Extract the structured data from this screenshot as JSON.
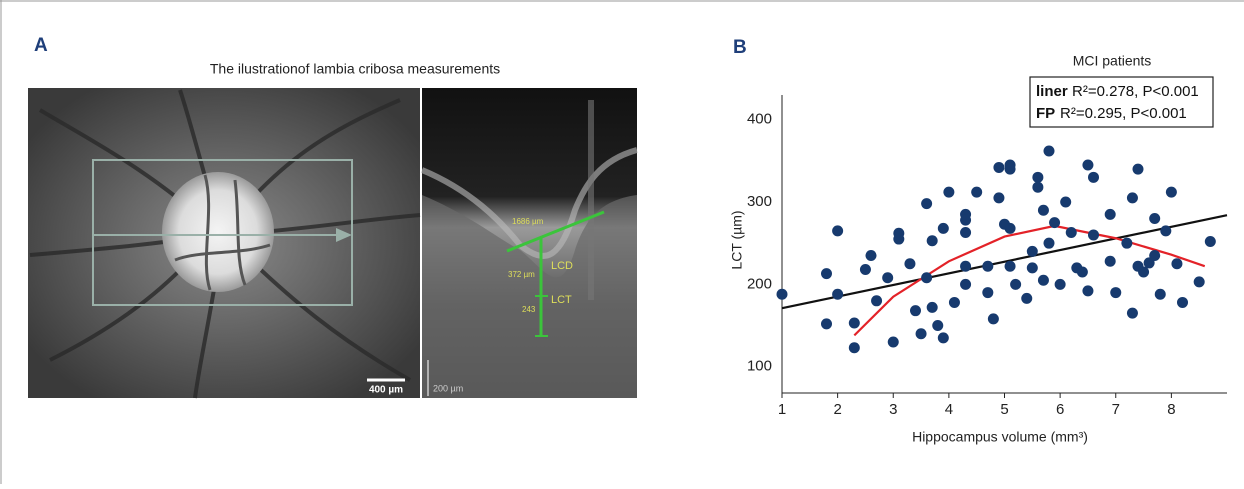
{
  "panel_a": {
    "label": "A",
    "title": "The ilustrationof lambia cribosa measurements",
    "fundus_scale": "400 µm",
    "oct_scale": "200 µm",
    "oct_labels": [
      "1686 µm",
      "372 µm",
      "243"
    ],
    "lcd": "LCD",
    "lct": "LCT"
  },
  "chart_data": {
    "type": "scatter",
    "label": "B",
    "title": "MCI patients",
    "x_label": "Hippocampus volume (mm³)",
    "y_label": "LCT (µm)",
    "xlim": [
      1,
      9
    ],
    "ylim": [
      68,
      430
    ],
    "xticks": [
      1,
      2,
      3,
      4,
      5,
      6,
      7,
      8
    ],
    "yticks": [
      100,
      200,
      300,
      400
    ],
    "color": "#173a6e",
    "x": [
      1.0,
      1.8,
      1.8,
      2.0,
      2.0,
      2.3,
      2.3,
      2.5,
      2.6,
      2.7,
      2.9,
      3.1,
      3.1,
      3.0,
      3.3,
      3.4,
      3.5,
      3.6,
      3.6,
      3.7,
      3.7,
      3.8,
      3.9,
      3.9,
      4.0,
      4.1,
      4.3,
      4.3,
      4.3,
      4.3,
      4.3,
      4.5,
      4.7,
      4.7,
      4.8,
      4.9,
      4.9,
      5.0,
      5.1,
      5.1,
      5.1,
      5.1,
      5.2,
      5.4,
      5.5,
      5.5,
      5.6,
      5.6,
      5.7,
      5.7,
      5.8,
      5.8,
      5.9,
      6.0,
      6.1,
      6.2,
      6.3,
      6.4,
      6.5,
      6.6,
      6.6,
      6.5,
      6.9,
      6.9,
      7.0,
      7.2,
      7.3,
      7.3,
      7.4,
      7.4,
      7.5,
      7.6,
      7.7,
      7.7,
      7.8,
      7.9,
      8.0,
      8.1,
      8.2,
      8.5,
      8.7
    ],
    "values": [
      188,
      213,
      152,
      265,
      188,
      123,
      153,
      218,
      235,
      180,
      208,
      262,
      255,
      130,
      225,
      168,
      140,
      298,
      208,
      172,
      253,
      150,
      268,
      135,
      312,
      178,
      285,
      278,
      263,
      222,
      200,
      312,
      190,
      222,
      158,
      342,
      305,
      273,
      345,
      340,
      268,
      222,
      200,
      183,
      240,
      220,
      330,
      318,
      290,
      205,
      362,
      250,
      275,
      200,
      300,
      263,
      220,
      215,
      345,
      330,
      260,
      192,
      285,
      228,
      190,
      250,
      305,
      165,
      340,
      222,
      215,
      226,
      235,
      280,
      188,
      265,
      312,
      225,
      178,
      203,
      252
    ],
    "fit_lines": [
      {
        "x": [
          1,
          9
        ],
        "values": [
          171,
          284
        ],
        "color": "#111111"
      },
      {
        "x": [
          2.3,
          3,
          4,
          5,
          5.9,
          7,
          8,
          8.6
        ],
        "values": [
          138,
          185,
          228,
          258,
          271,
          256,
          236,
          222
        ],
        "color": "#e32228"
      }
    ],
    "annotations": [
      {
        "label": "liner",
        "text": "R²=0.278, P<0.001"
      },
      {
        "label": "FP",
        "text": "R²=0.295, P<0.001"
      }
    ]
  }
}
